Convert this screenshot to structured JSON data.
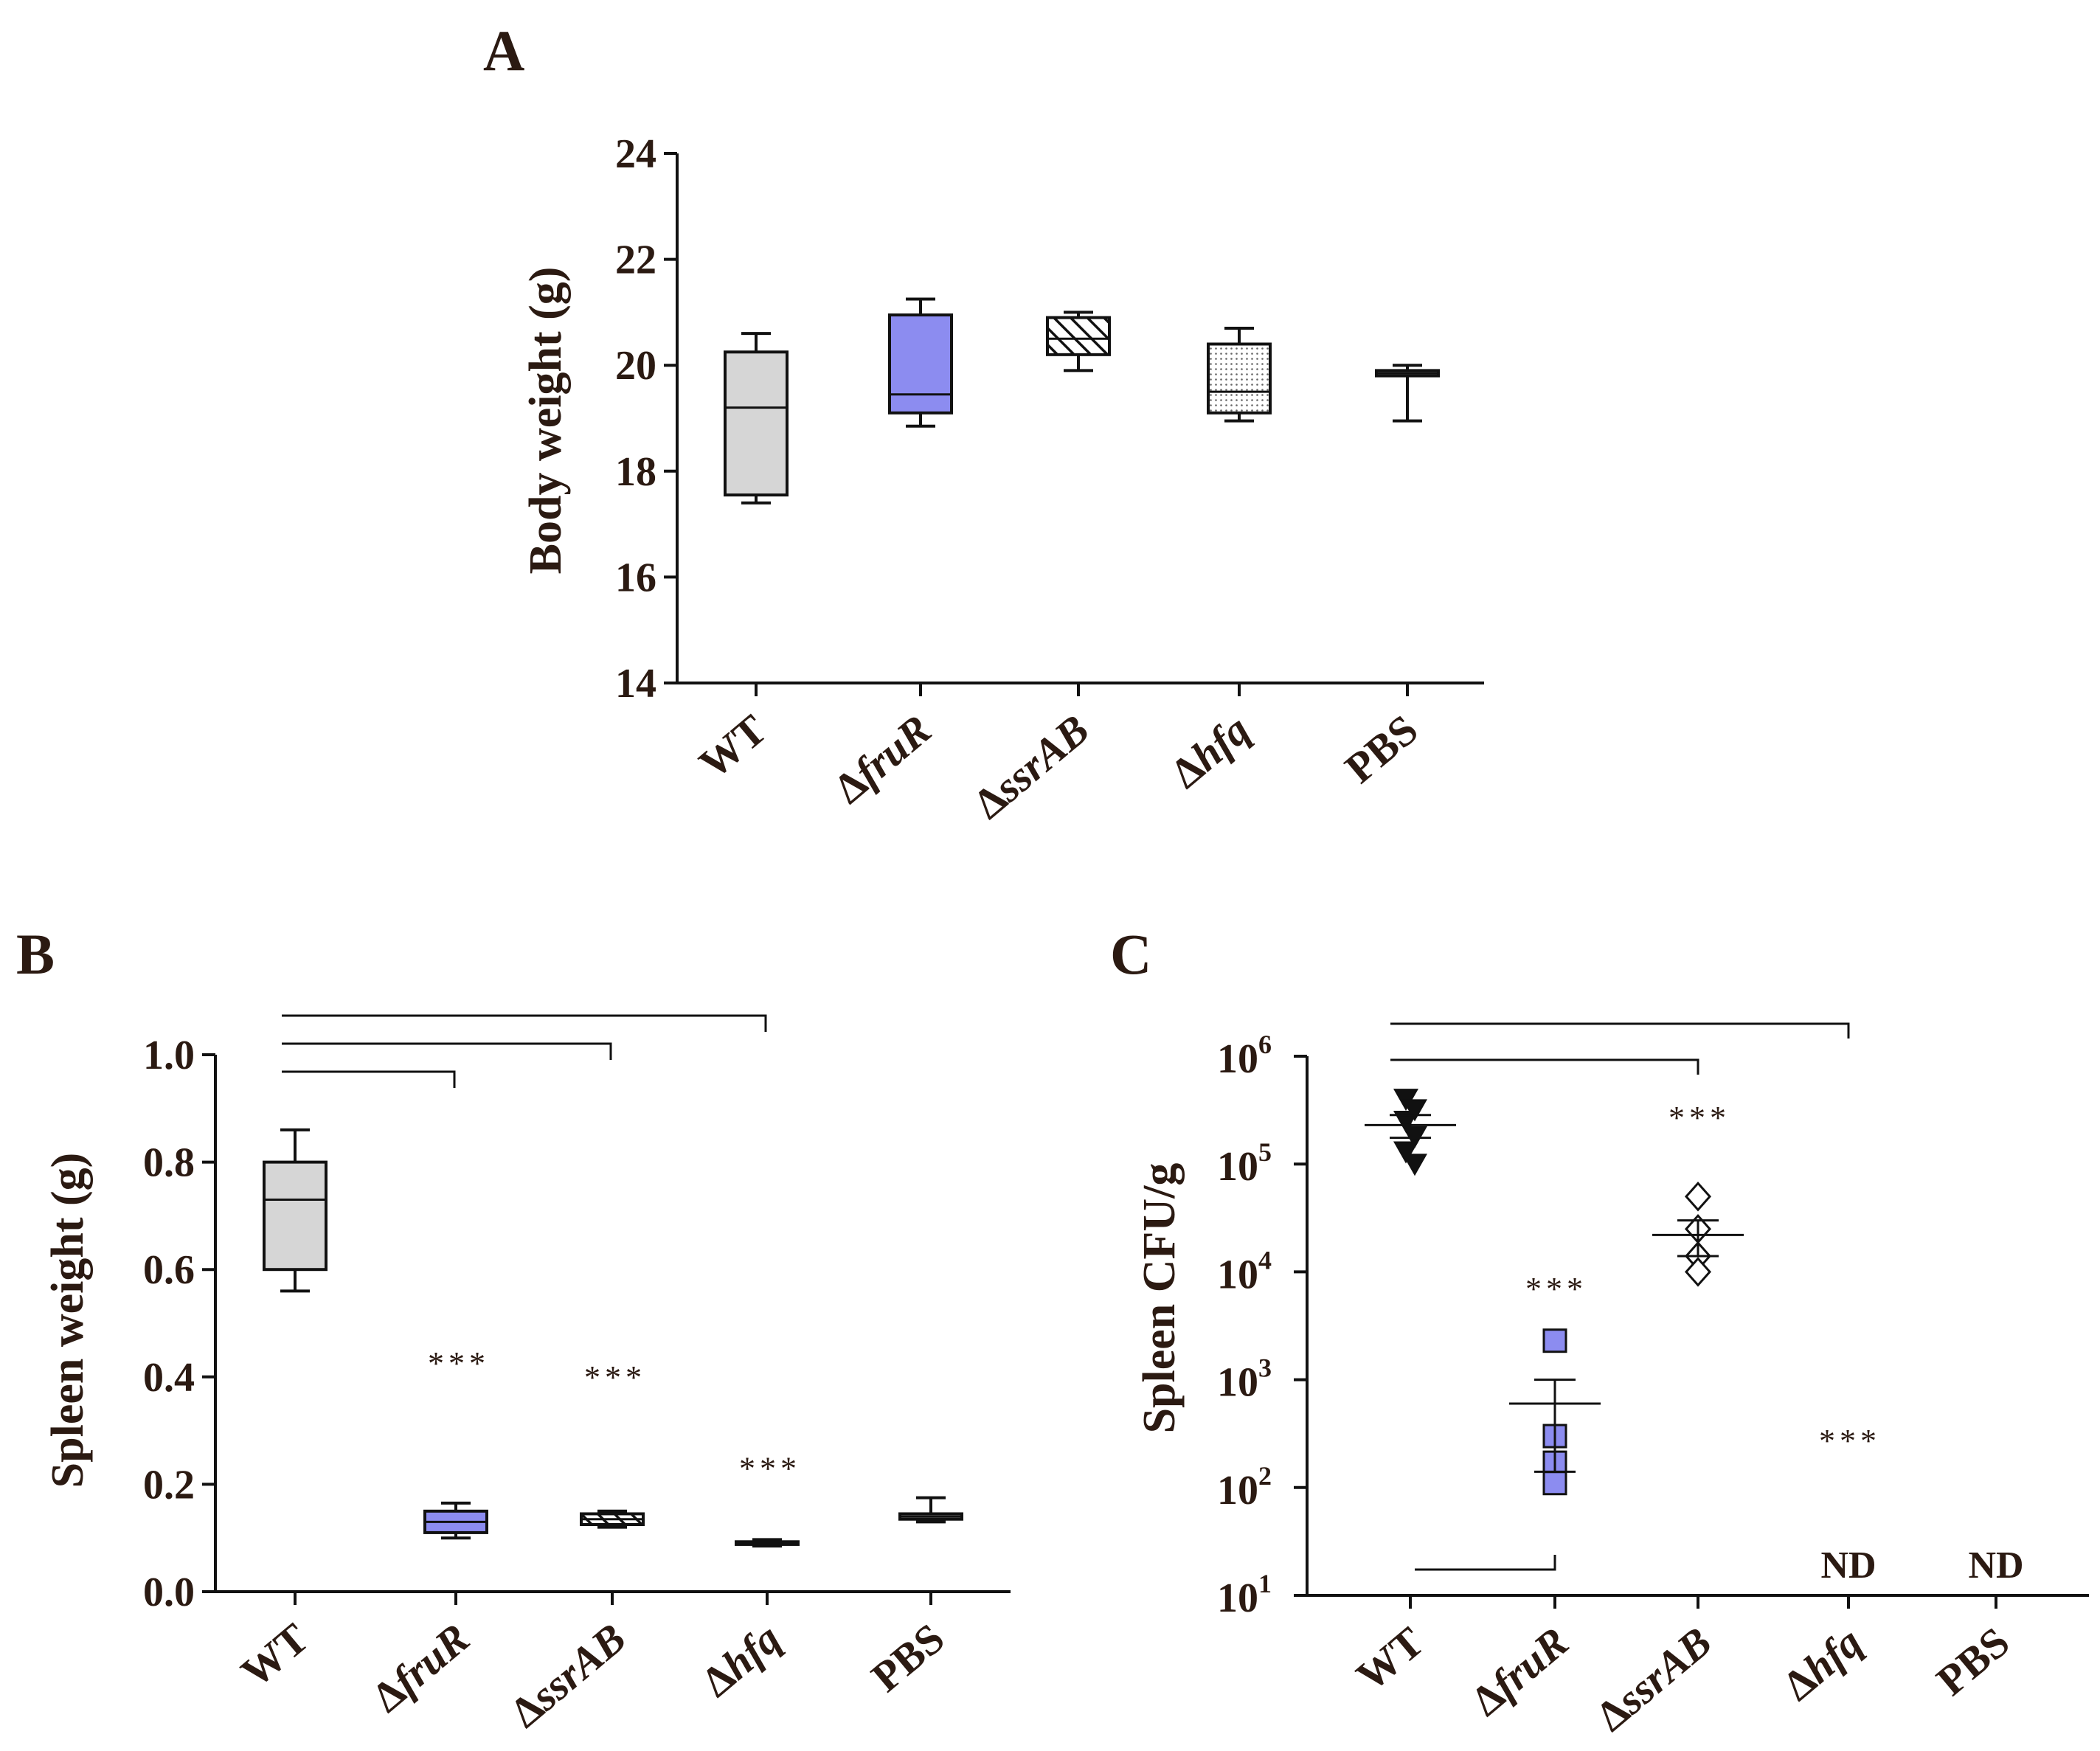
{
  "colors": {
    "wt": "#d6d6d6",
    "fruR": "#8c8cf0",
    "line": "#111111",
    "text": "#2b1a12"
  },
  "chart_data": [
    {
      "panel": "A",
      "type": "box",
      "ylabel": "Body weight (g)",
      "ylim": [
        14,
        24
      ],
      "yticks": [
        14,
        16,
        18,
        20,
        22,
        24
      ],
      "categories": [
        "WT",
        "ΔfruR",
        "ΔssrAB",
        "Δhfq",
        "PBS"
      ],
      "boxes": [
        {
          "min": 17.4,
          "q1": 17.55,
          "median": 19.2,
          "q3": 20.25,
          "max": 20.6,
          "fill": "gray"
        },
        {
          "min": 18.85,
          "q1": 19.1,
          "median": 19.45,
          "q3": 20.95,
          "max": 21.25,
          "fill": "blue"
        },
        {
          "min": 19.9,
          "q1": 20.2,
          "median": 20.5,
          "q3": 20.9,
          "max": 21.0,
          "fill": "hatch"
        },
        {
          "min": 18.95,
          "q1": 19.1,
          "median": 19.5,
          "q3": 20.4,
          "max": 20.7,
          "fill": "dots"
        },
        {
          "min": 18.95,
          "q1": 19.8,
          "median": 19.85,
          "q3": 19.9,
          "max": 20.0,
          "fill": "white"
        }
      ]
    },
    {
      "panel": "B",
      "type": "box",
      "ylabel": "Spleen weight (g)",
      "ylim": [
        0,
        1
      ],
      "yticks": [
        "0.0",
        "0.2",
        "0.4",
        "0.6",
        "0.8",
        "1.0"
      ],
      "categories": [
        "WT",
        "ΔfruR",
        "ΔssrAB",
        "Δhfq",
        "PBS"
      ],
      "boxes": [
        {
          "min": 0.56,
          "q1": 0.6,
          "median": 0.73,
          "q3": 0.8,
          "max": 0.86,
          "fill": "gray"
        },
        {
          "min": 0.1,
          "q1": 0.11,
          "median": 0.13,
          "q3": 0.15,
          "max": 0.165,
          "fill": "blue"
        },
        {
          "min": 0.12,
          "q1": 0.125,
          "median": 0.135,
          "q3": 0.145,
          "max": 0.15,
          "fill": "hatch"
        },
        {
          "min": 0.085,
          "q1": 0.088,
          "median": 0.09,
          "q3": 0.093,
          "max": 0.097,
          "fill": "dots"
        },
        {
          "min": 0.13,
          "q1": 0.135,
          "median": 0.14,
          "q3": 0.145,
          "max": 0.175,
          "fill": "white"
        }
      ],
      "significance": [
        "",
        "***",
        "***",
        "***",
        ""
      ],
      "comparisons": [
        {
          "from": "WT",
          "to": "ΔfruR"
        },
        {
          "from": "WT",
          "to": "ΔssrAB"
        },
        {
          "from": "WT",
          "to": "Δhfq"
        }
      ]
    },
    {
      "panel": "C",
      "type": "scatter",
      "yscale": "log",
      "ylabel": "Spleen CFU/g",
      "ylim_log10": [
        1,
        6
      ],
      "yticks": [
        {
          "base": "10",
          "exp": "1"
        },
        {
          "base": "10",
          "exp": "2"
        },
        {
          "base": "10",
          "exp": "3"
        },
        {
          "base": "10",
          "exp": "4"
        },
        {
          "base": "10",
          "exp": "5"
        },
        {
          "base": "10",
          "exp": "6"
        }
      ],
      "categories": [
        "WT",
        "ΔfruR",
        "ΔssrAB",
        "Δhfq",
        "PBS"
      ],
      "groups": [
        {
          "marker": "triangle-down",
          "points": [
            400000,
            320000,
            250000,
            180000,
            130000,
            100000
          ],
          "mean": 230000,
          "sem_low": 175000,
          "sem_high": 285000
        },
        {
          "marker": "square",
          "points": [
            2300,
            300,
            170,
            110
          ],
          "mean": 600,
          "sem_low": 140,
          "sem_high": 1000
        },
        {
          "marker": "diamond",
          "points": [
            50000,
            25000,
            14000,
            10000
          ],
          "mean": 22000,
          "sem_low": 14000,
          "sem_high": 30000
        },
        {
          "marker": "none",
          "points": []
        },
        {
          "marker": "none",
          "points": []
        }
      ],
      "significance": [
        "",
        "***",
        "***",
        "***",
        ""
      ],
      "annotations": [
        "",
        "",
        "",
        "ND",
        "ND"
      ],
      "comparisons": [
        {
          "from": "WT",
          "to": "ΔssrAB"
        },
        {
          "from": "WT",
          "to": "Δhfq"
        },
        {
          "from": "WT",
          "to": "ΔfruR"
        }
      ]
    }
  ],
  "cat_parts": [
    [
      {
        "t": "WT",
        "i": false
      }
    ],
    [
      {
        "t": "Δ",
        "i": false
      },
      {
        "t": "fruR",
        "i": true
      }
    ],
    [
      {
        "t": "Δ",
        "i": false
      },
      {
        "t": "ssrAB",
        "i": true
      }
    ],
    [
      {
        "t": "Δ",
        "i": false
      },
      {
        "t": "hfq",
        "i": true
      }
    ],
    [
      {
        "t": "PBS",
        "i": false
      }
    ]
  ]
}
